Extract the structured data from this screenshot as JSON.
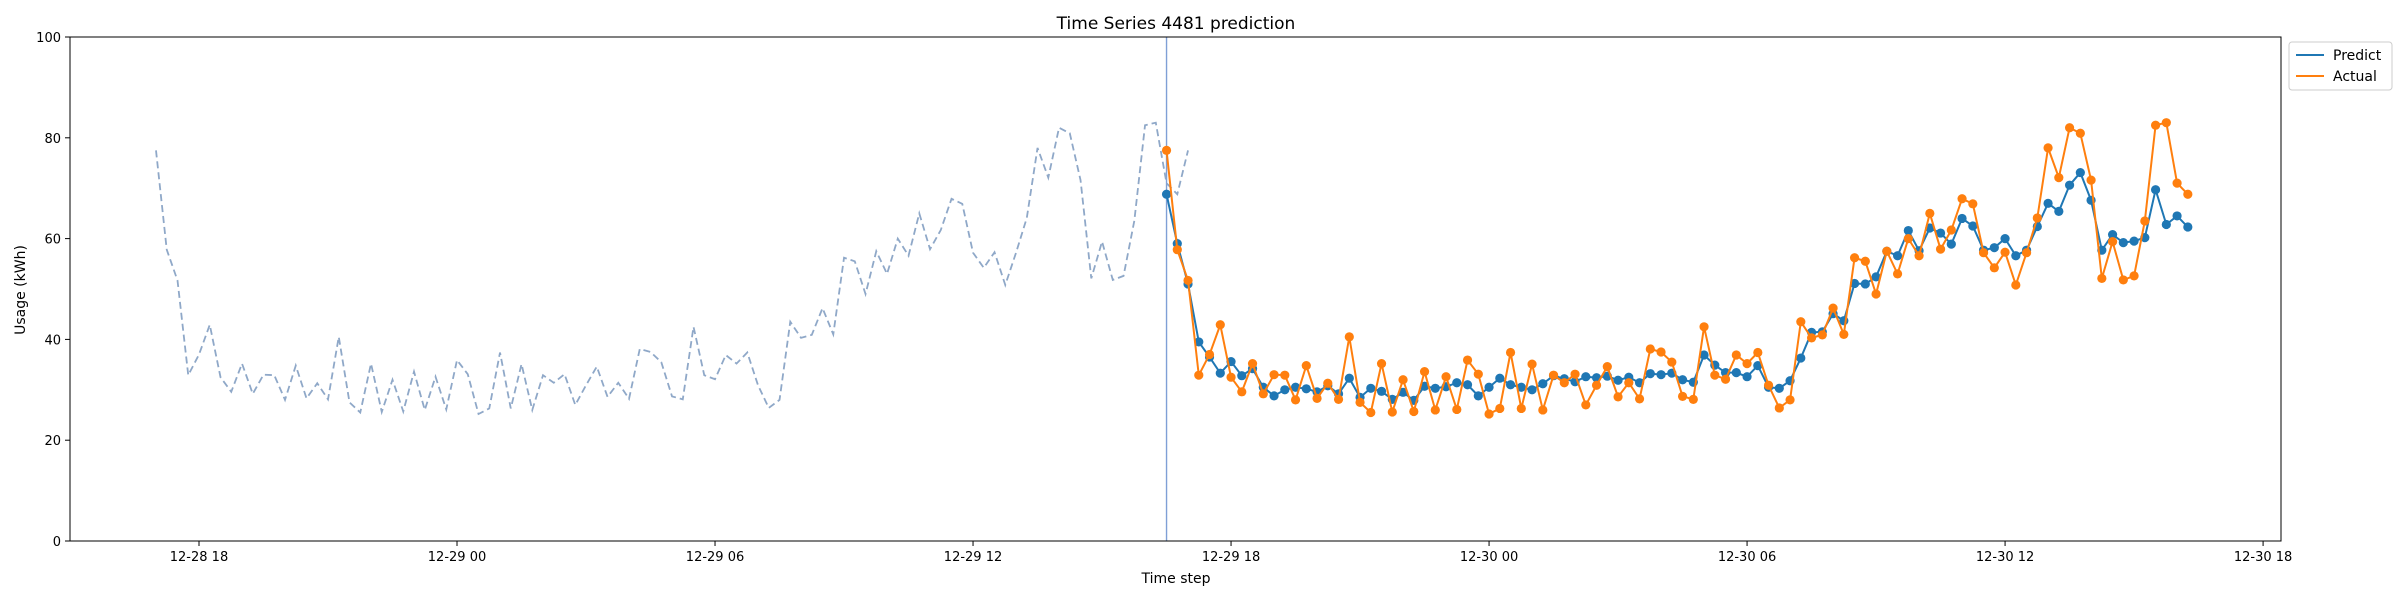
{
  "chart_data": {
    "type": "line",
    "title": "Time Series 4481 prediction",
    "xlabel": "Time step",
    "ylabel": "Usage (kWh)",
    "ylim": [
      0,
      100
    ],
    "xlim": [
      "2023-12-28 15:00",
      "2023-12-30 18:25"
    ],
    "yticks": [
      0,
      20,
      40,
      60,
      80,
      100
    ],
    "xticks": [
      {
        "t": "2023-12-28 18:00",
        "label": "12-28 18"
      },
      {
        "t": "2023-12-29 00:00",
        "label": "12-29 00"
      },
      {
        "t": "2023-12-29 06:00",
        "label": "12-29 06"
      },
      {
        "t": "2023-12-29 12:00",
        "label": "12-29 12"
      },
      {
        "t": "2023-12-29 18:00",
        "label": "12-29 18"
      },
      {
        "t": "2023-12-30 00:00",
        "label": "12-30 00"
      },
      {
        "t": "2023-12-30 06:00",
        "label": "12-30 06"
      },
      {
        "t": "2023-12-30 12:00",
        "label": "12-30 12"
      },
      {
        "t": "2023-12-30 18:00",
        "label": "12-30 18"
      }
    ],
    "x_step_minutes": 15,
    "grid": false,
    "legend_position": "upper right, outside",
    "forecast_start": "2023-12-29 16:30",
    "series": [
      {
        "name": "",
        "style": "dashed",
        "color": "#8fa8c8",
        "x_start": "2023-12-28 17:00",
        "values": [
          77.5,
          57.8,
          51.7,
          32.9,
          37.0,
          42.9,
          32.5,
          29.6,
          35.2,
          29.2,
          33.0,
          32.9,
          28.0,
          34.8,
          28.3,
          31.3,
          28.1,
          40.5,
          27.5,
          25.5,
          35.2,
          25.6,
          32.0,
          25.7,
          33.6,
          26.0,
          32.6,
          26.1,
          35.9,
          33.1,
          25.2,
          26.3,
          37.4,
          26.3,
          35.1,
          26.0,
          32.9,
          31.4,
          33.1,
          27.0,
          30.9,
          34.6,
          28.6,
          31.4,
          28.2,
          38.1,
          37.5,
          35.5,
          28.7,
          28.1,
          42.5,
          32.9,
          32.1,
          36.9,
          35.2,
          37.4,
          30.9,
          26.4,
          28.0,
          43.5,
          40.3,
          40.9,
          46.2,
          41.0,
          56.2,
          55.5,
          49.0,
          57.5,
          53.0,
          60.0,
          56.6,
          65.0,
          57.9,
          61.7,
          67.9,
          66.9,
          57.2,
          54.2,
          57.3,
          50.8,
          57.2,
          64.1,
          78.0,
          72.1,
          82.0,
          80.9,
          71.6,
          52.1,
          59.4,
          51.8,
          52.6,
          63.5,
          82.5,
          83.0,
          71.0,
          68.8,
          77.5
        ]
      },
      {
        "name": "Predict",
        "style": "solid-markers",
        "color": "#1f77b4",
        "x_start": "2023-12-29 16:30",
        "values": [
          68.8,
          59.0,
          51.0,
          39.5,
          36.5,
          33.3,
          35.6,
          32.8,
          34.2,
          30.5,
          28.8,
          30.0,
          30.5,
          30.2,
          29.6,
          30.8,
          29.2,
          32.3,
          28.5,
          30.3,
          29.7,
          28.1,
          29.5,
          27.9,
          30.7,
          30.3,
          30.6,
          31.4,
          31.0,
          28.8,
          30.5,
          32.3,
          31.0,
          30.5,
          30.0,
          31.2,
          32.8,
          32.2,
          31.6,
          32.6,
          32.4,
          32.7,
          31.9,
          32.5,
          31.4,
          33.2,
          33.0,
          33.3,
          32.0,
          31.5,
          36.9,
          34.9,
          33.4,
          33.4,
          32.6,
          34.8,
          30.5,
          30.3,
          31.8,
          36.3,
          41.4,
          41.5,
          45.1,
          43.7,
          51.1,
          51.0,
          52.4,
          57.5,
          56.6,
          61.6,
          57.6,
          62.1,
          61.1,
          58.9,
          64.0,
          62.5,
          57.7,
          58.2,
          60.0,
          56.6,
          57.7,
          62.4,
          67.0,
          65.4,
          70.6,
          73.1,
          67.6,
          57.7,
          60.8,
          59.2,
          59.5,
          60.2,
          69.7,
          62.8,
          64.5,
          62.3
        ]
      },
      {
        "name": "Actual",
        "style": "solid-markers",
        "color": "#ff7f0e",
        "x_start": "2023-12-29 16:30",
        "values": [
          77.5,
          57.8,
          51.7,
          32.9,
          37.0,
          42.9,
          32.5,
          29.6,
          35.2,
          29.2,
          33.0,
          32.9,
          28.0,
          34.8,
          28.3,
          31.3,
          28.1,
          40.5,
          27.5,
          25.5,
          35.2,
          25.6,
          32.0,
          25.7,
          33.6,
          26.0,
          32.6,
          26.1,
          35.9,
          33.1,
          25.2,
          26.3,
          37.4,
          26.3,
          35.1,
          26.0,
          32.9,
          31.4,
          33.1,
          27.0,
          30.9,
          34.6,
          28.6,
          31.4,
          28.2,
          38.1,
          37.5,
          35.5,
          28.7,
          28.1,
          42.5,
          32.9,
          32.1,
          36.9,
          35.2,
          37.4,
          30.9,
          26.4,
          28.0,
          43.5,
          40.3,
          40.9,
          46.2,
          41.0,
          56.2,
          55.5,
          49.0,
          57.5,
          53.0,
          60.0,
          56.6,
          65.0,
          57.9,
          61.7,
          67.9,
          66.9,
          57.2,
          54.2,
          57.3,
          50.8,
          57.2,
          64.1,
          78.0,
          72.1,
          82.0,
          80.9,
          71.6,
          52.1,
          59.4,
          51.8,
          52.6,
          63.5,
          82.5,
          83.0,
          71.0,
          68.8
        ]
      }
    ]
  }
}
